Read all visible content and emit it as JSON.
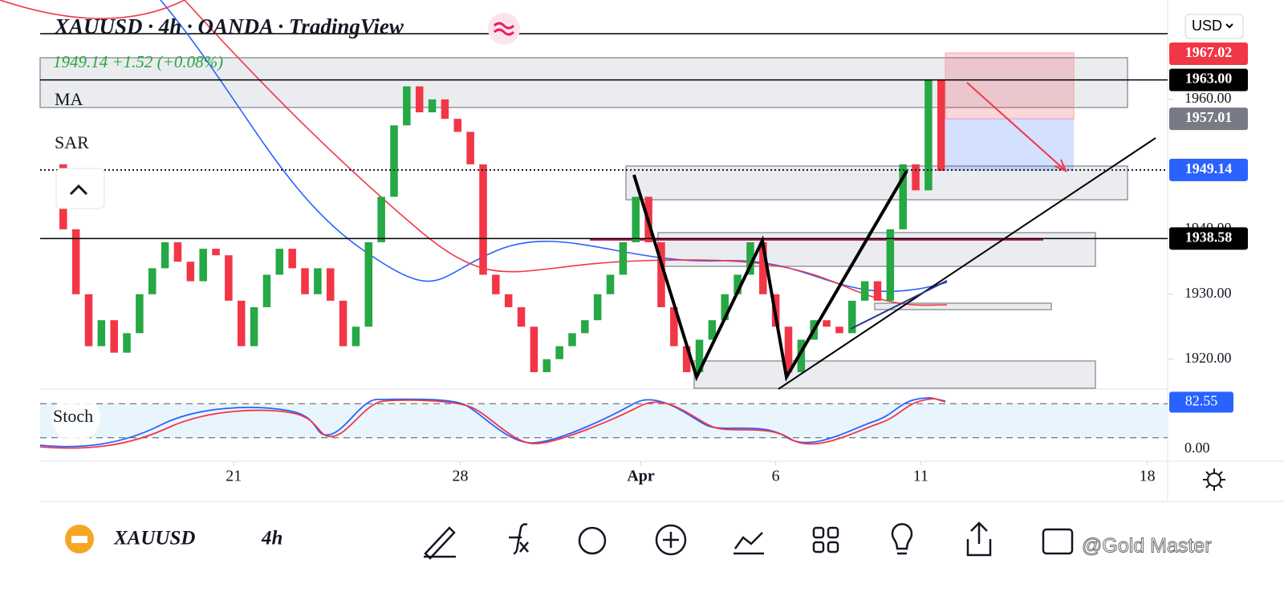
{
  "header": {
    "title": "XAUUSD · 4h · OANDA · TradingView",
    "quote": "1949.14 +1.52 (+0.08%)",
    "indicators": [
      "MA",
      "SAR"
    ],
    "currency": "USD"
  },
  "chart_data": {
    "type": "candlestick",
    "closes": [
      1950,
      1940,
      1930,
      1922,
      1926,
      1921,
      1924,
      1930,
      1934,
      1938,
      1935,
      1932,
      1937,
      1936,
      1929,
      1922,
      1928,
      1933,
      1937,
      1934,
      1930,
      1934,
      1929,
      1922,
      1925,
      1938,
      1945,
      1956,
      1962,
      1958,
      1960,
      1957,
      1955,
      1950,
      1933,
      1930,
      1928,
      1925,
      1918,
      1920,
      1922,
      1924,
      1926,
      1930,
      1933,
      1938,
      1945,
      1938,
      1928,
      1922,
      1918,
      1923,
      1926,
      1930,
      1933,
      1938,
      1930,
      1925,
      1918,
      1923,
      1926,
      1925,
      1924,
      1929,
      1932,
      1929,
      1940,
      1950,
      1946,
      1963,
      1949
    ],
    "xlim": [
      -0.5,
      87.8
    ],
    "xticks": [
      {
        "value": 14.4,
        "label": "21"
      },
      {
        "value": 32.2,
        "label": "28"
      },
      {
        "value": 46.4,
        "label": "Apr"
      },
      {
        "value": 57.0,
        "label": "6"
      },
      {
        "value": 68.4,
        "label": "11"
      },
      {
        "value": 86.2,
        "label": "18"
      }
    ],
    "ylim": [
      1915.4,
      1975.3
    ],
    "yticks": [
      {
        "value": 1960,
        "label": "1960.00"
      },
      {
        "value": 1940,
        "label": "1940.00"
      },
      {
        "value": 1930,
        "label": "1930.00"
      },
      {
        "value": 1920,
        "label": "1920.00"
      }
    ],
    "price_tags": [
      {
        "value": 1967.02,
        "label": "1967.02",
        "color": "#f23645"
      },
      {
        "value": 1963,
        "label": "1963.00",
        "color": "#000000",
        "line": "solid"
      },
      {
        "value": 1957.01,
        "label": "1957.01",
        "color": "#787b86"
      },
      {
        "value": 1949.14,
        "label": "1949.14",
        "color": "#2962ff",
        "line": "dotted"
      },
      {
        "value": 1938.58,
        "label": "1938.58",
        "color": "#000000",
        "line": "solid"
      }
    ],
    "up_color": "#26a844",
    "down_color": "#f23645"
  },
  "stoch": {
    "name": "Stoch",
    "ylim": [
      0,
      100
    ],
    "bands": [
      20,
      80
    ],
    "tick": {
      "value": 0,
      "label": "0.00"
    },
    "value": 82.55,
    "color": "#2962ff"
  },
  "toolbar": {
    "symbol": "XAUUSD",
    "interval": "4h",
    "watermark": "@Gold Master"
  }
}
